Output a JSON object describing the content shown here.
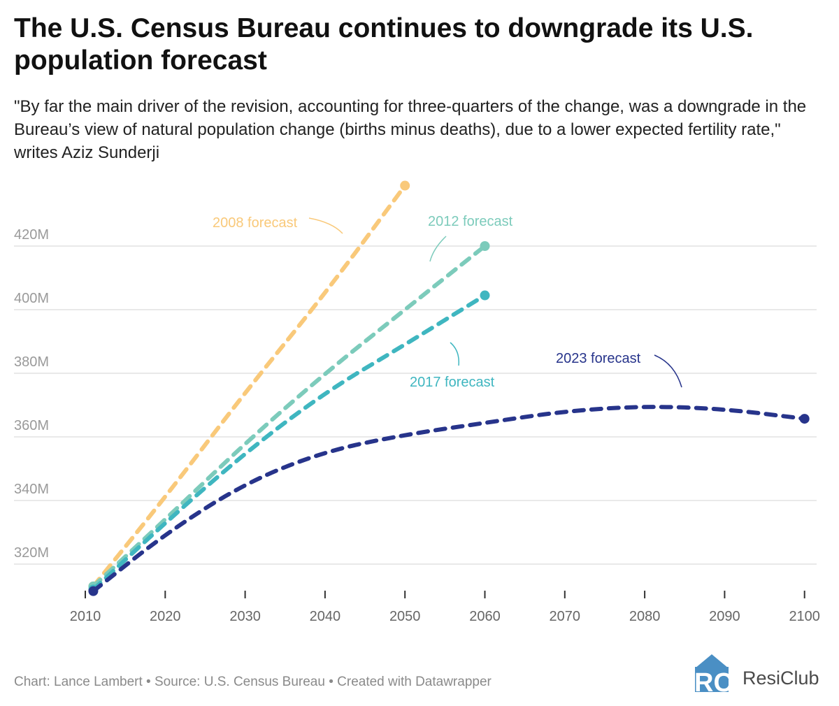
{
  "title": "The U.S. Census Bureau continues to downgrade its U.S. population forecast",
  "subtitle": "\"By far the main driver of the revision, accounting for three-quarters of the change, was a downgrade in the Bureau’s view of natural population change (births minus deaths), due to a lower expected fertility rate,\" writes Aziz Sunderji",
  "footer": "Chart: Lance Lambert • Source: U.S. Census Bureau • Created with Datawrapper",
  "logo": {
    "text": "ResiClub",
    "mark": "RC",
    "color": "#4a8fc4"
  },
  "chart_data": {
    "type": "line",
    "title": "The U.S. Census Bureau continues to downgrade its U.S. population forecast",
    "xlim": [
      2010,
      2100
    ],
    "ylim": [
      310,
      440
    ],
    "x_ticks": [
      "2010",
      "2020",
      "2030",
      "2040",
      "2050",
      "2060",
      "2070",
      "2080",
      "2090",
      "2100"
    ],
    "y_ticks": [
      "320M",
      "340M",
      "360M",
      "380M",
      "400M",
      "420M"
    ],
    "y_tick_values": [
      320,
      340,
      360,
      380,
      400,
      420
    ],
    "grid": "horizontal",
    "line_style": "dashed",
    "series": [
      {
        "name": "2008 forecast",
        "color": "#f9c97a",
        "x": [
          2011,
          2020,
          2030,
          2040,
          2050
        ],
        "y": [
          313,
          341,
          374,
          405,
          439
        ]
      },
      {
        "name": "2012 forecast",
        "color": "#7ccbbb",
        "x": [
          2011,
          2020,
          2030,
          2040,
          2050,
          2060
        ],
        "y": [
          313,
          334,
          358,
          380,
          400,
          420
        ]
      },
      {
        "name": "2017 forecast",
        "color": "#3fb6c0",
        "x": [
          2011,
          2020,
          2030,
          2040,
          2050,
          2060
        ],
        "y": [
          312,
          333,
          355,
          374,
          389,
          404.5
        ]
      },
      {
        "name": "2023 forecast",
        "color": "#27348b",
        "x": [
          2011,
          2020,
          2030,
          2040,
          2050,
          2060,
          2070,
          2080,
          2090,
          2100
        ],
        "y": [
          311.5,
          329.5,
          345.5,
          355.5,
          360.7,
          364.4,
          368.1,
          369.7,
          368.8,
          365.7
        ]
      }
    ]
  }
}
